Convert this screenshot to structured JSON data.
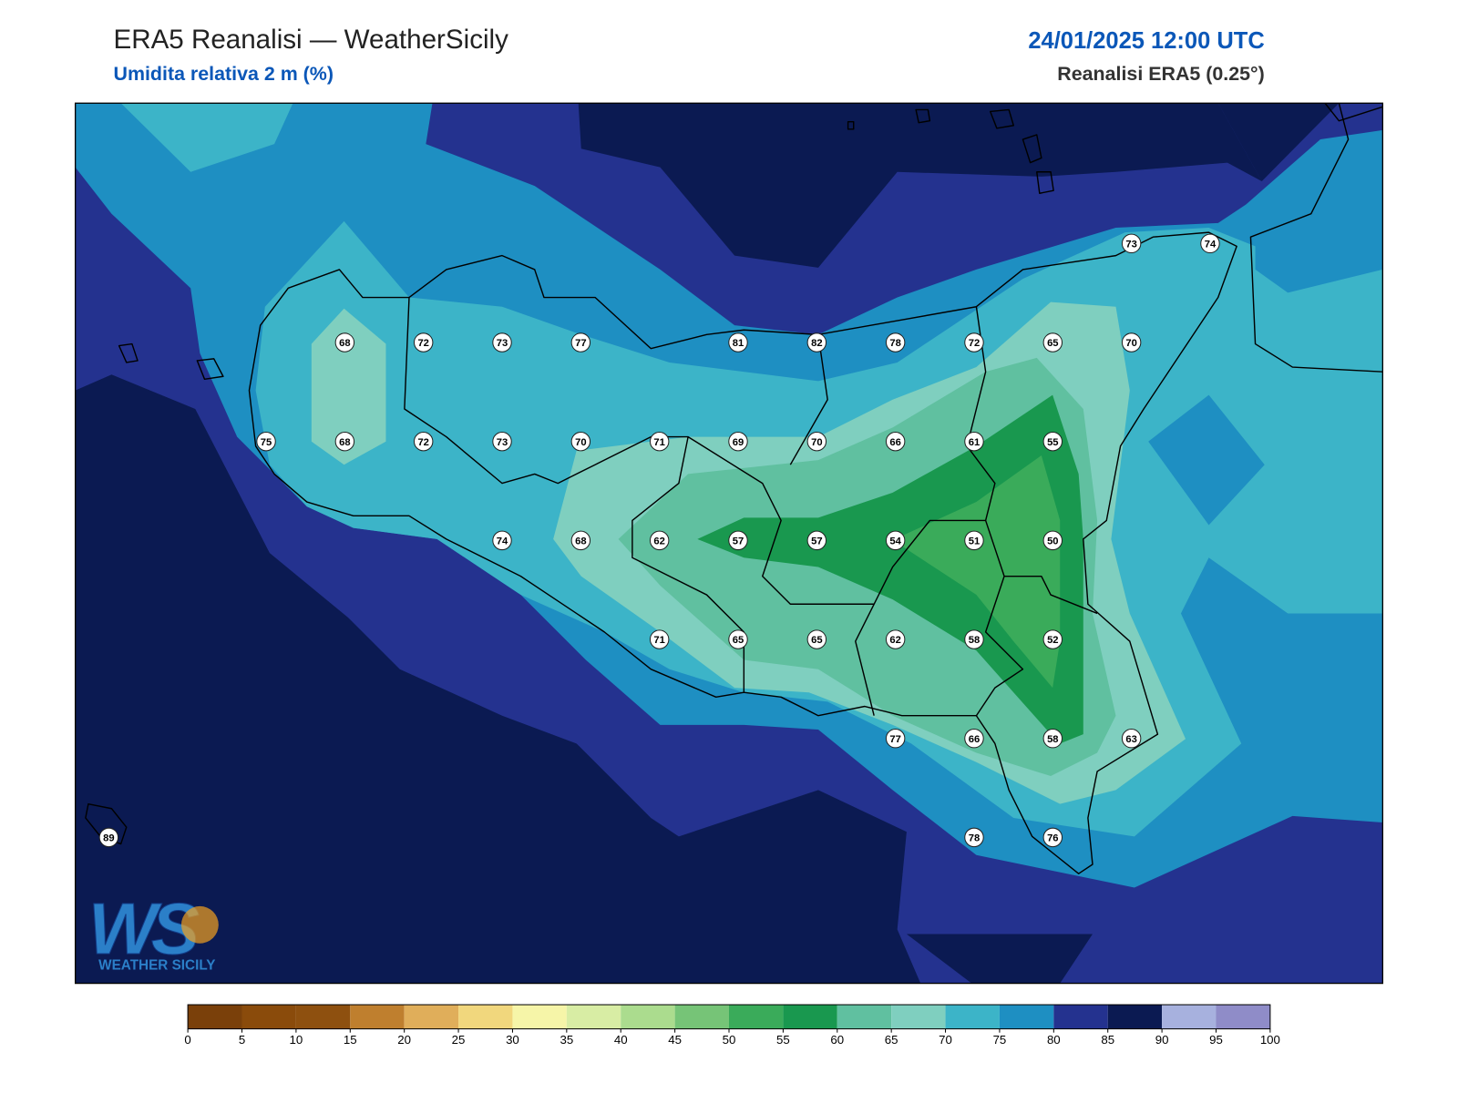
{
  "header": {
    "title": "ERA5 Reanalisi — WeatherSicily",
    "subtitle": "Umidita relativa 2 m (%)",
    "datetime": "24/01/2025 12:00 UTC",
    "source": "Reanalisi ERA5 (0.25°)"
  },
  "map": {
    "station_values": [
      [
        null,
        null,
        null,
        null,
        null,
        null,
        null,
        null,
        null,
        null,
        null,
        null,
        null,
        73,
        74
      ],
      [
        null,
        null,
        null,
        68,
        72,
        73,
        77,
        null,
        81,
        82,
        78,
        72,
        65,
        70,
        null
      ],
      [
        null,
        null,
        75,
        68,
        72,
        73,
        70,
        71,
        69,
        70,
        66,
        61,
        55,
        null,
        null
      ],
      [
        null,
        null,
        null,
        null,
        null,
        74,
        68,
        62,
        57,
        57,
        54,
        51,
        50,
        null,
        null
      ],
      [
        null,
        null,
        null,
        null,
        null,
        null,
        null,
        71,
        65,
        65,
        62,
        58,
        52,
        null,
        null
      ],
      [
        null,
        null,
        null,
        null,
        null,
        null,
        null,
        null,
        null,
        null,
        77,
        66,
        58,
        63,
        null
      ],
      [
        89,
        null,
        null,
        null,
        null,
        null,
        null,
        null,
        null,
        null,
        null,
        78,
        76,
        null,
        null
      ]
    ]
  },
  "colorbar": {
    "ticks": [
      0,
      5,
      10,
      15,
      20,
      25,
      30,
      35,
      40,
      45,
      50,
      55,
      60,
      65,
      70,
      75,
      80,
      85,
      90,
      95,
      100
    ],
    "colors": [
      "#7a400a",
      "#8a4b0b",
      "#8e500f",
      "#bf7f2e",
      "#e0ae5a",
      "#f1d77d",
      "#f6f5a8",
      "#d8eda4",
      "#abdc8e",
      "#76c477",
      "#3aab5a",
      "#19984f",
      "#60c0a0",
      "#7fcfbf",
      "#3cb4c8",
      "#1e8fc2",
      "#24328f",
      "#0b1a52",
      "#a7b1de",
      "#8f8cc8"
    ]
  },
  "logo": {
    "mark": "WS",
    "text": "WEATHER SICILY"
  }
}
